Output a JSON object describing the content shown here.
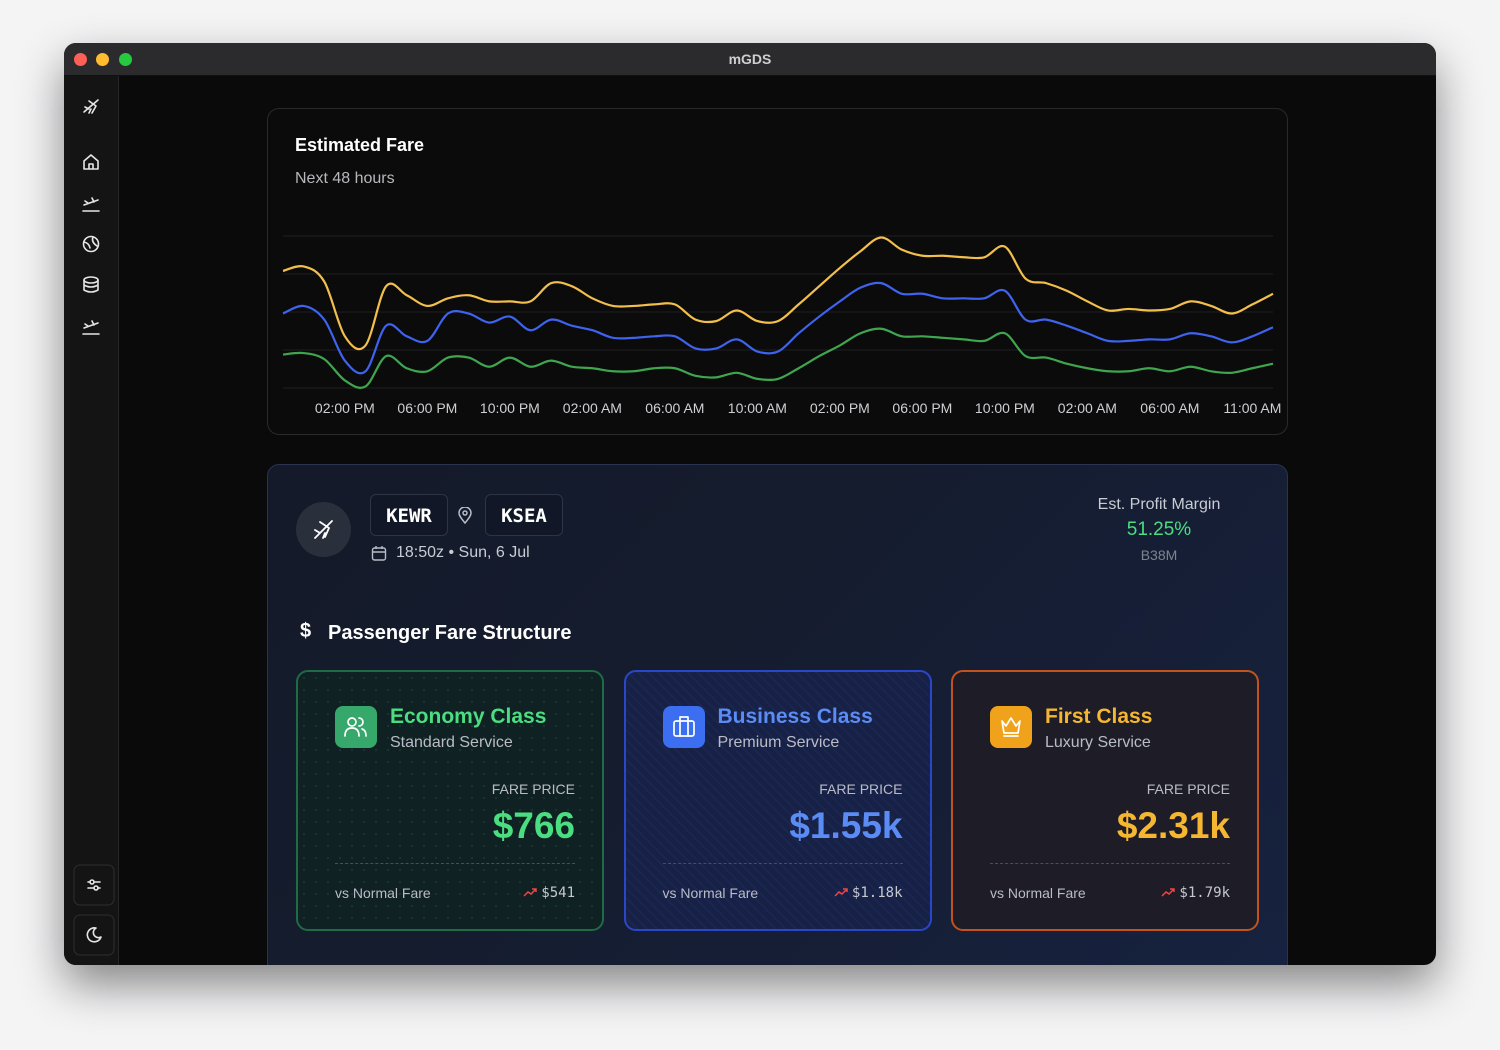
{
  "window": {
    "title": "mGDS"
  },
  "chart_data": {
    "type": "line",
    "title": "Estimated Fare",
    "subtitle": "Next 48 hours",
    "categories": [
      null,
      null,
      null,
      "02:00 PM",
      null,
      null,
      null,
      "06:00 PM",
      null,
      null,
      null,
      "10:00 PM",
      null,
      null,
      null,
      "02:00 AM",
      null,
      null,
      null,
      "06:00 AM",
      null,
      null,
      null,
      "10:00 AM",
      null,
      null,
      null,
      "02:00 PM",
      null,
      null,
      null,
      "06:00 PM",
      null,
      null,
      null,
      "10:00 PM",
      null,
      null,
      null,
      "02:00 AM",
      null,
      null,
      null,
      "06:00 AM",
      null,
      null,
      null,
      "11:00 AM",
      null
    ],
    "series": [
      {
        "color": "#f3bf4c",
        "values": [
          77,
          80,
          70,
          34,
          28,
          67,
          61,
          54,
          59,
          61,
          57,
          57,
          57,
          69,
          67,
          59,
          54,
          54,
          55,
          55,
          45,
          44,
          51,
          44,
          44,
          55,
          67,
          79,
          90,
          99,
          91,
          87,
          87,
          86,
          86,
          93,
          72,
          69,
          64,
          57,
          51,
          52,
          51,
          52,
          57,
          54,
          49,
          55,
          62
        ]
      },
      {
        "color": "#3e63ee",
        "values": [
          49,
          54,
          45,
          18,
          11,
          41,
          34,
          31,
          49,
          49,
          43,
          47,
          38,
          45,
          41,
          38,
          33,
          33,
          34,
          34,
          26,
          26,
          32,
          24,
          24,
          36,
          47,
          57,
          66,
          69,
          62,
          62,
          59,
          59,
          59,
          64,
          45,
          45,
          41,
          36,
          31,
          31,
          32,
          32,
          36,
          34,
          30,
          34,
          40
        ]
      },
      {
        "color": "#3fa64f",
        "values": [
          22,
          23,
          19,
          5,
          1,
          21,
          13,
          11,
          20,
          20,
          14,
          20,
          14,
          18,
          14,
          13,
          11,
          11,
          13,
          13,
          8,
          7,
          10,
          6,
          6,
          13,
          21,
          28,
          36,
          39,
          34,
          34,
          33,
          32,
          31,
          36,
          21,
          20,
          16,
          13,
          11,
          11,
          13,
          11,
          14,
          11,
          10,
          13,
          16
        ]
      }
    ],
    "ylim": [
      0,
      100
    ],
    "grid": true
  },
  "flight": {
    "origin": "KEWR",
    "destination": "KSEA",
    "departure": "18:50z • Sun, 6 Jul",
    "profit_label": "Est. Profit Margin",
    "profit_value": "51.25%",
    "aircraft": "B38M"
  },
  "fare_structure": {
    "title": "Passenger Fare Structure",
    "classes": [
      {
        "name": "Economy Class",
        "service": "Standard Service",
        "price_label": "FARE PRICE",
        "price": "$766",
        "compare_label": "vs Normal Fare",
        "compare_value": "$541"
      },
      {
        "name": "Business Class",
        "service": "Premium Service",
        "price_label": "FARE PRICE",
        "price": "$1.55k",
        "compare_label": "vs Normal Fare",
        "compare_value": "$1.18k"
      },
      {
        "name": "First Class",
        "service": "Luxury Service",
        "price_label": "FARE PRICE",
        "price": "$2.31k",
        "compare_label": "vs Normal Fare",
        "compare_value": "$1.79k"
      }
    ]
  }
}
